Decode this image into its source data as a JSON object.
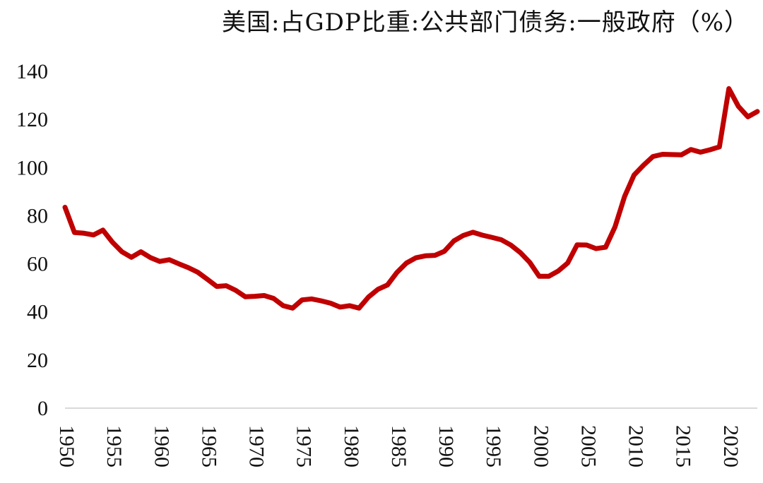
{
  "chart_data": {
    "type": "line",
    "title": "美国:占GDP比重:公共部门债务:一般政府（%）",
    "xlabel": "",
    "ylabel": "",
    "ylim": [
      0,
      140
    ],
    "yticks": [
      0,
      20,
      40,
      60,
      80,
      100,
      120,
      140
    ],
    "xlim": [
      1950,
      2023
    ],
    "xticks": [
      1950,
      1955,
      1960,
      1965,
      1970,
      1975,
      1980,
      1985,
      1990,
      1995,
      2000,
      2005,
      2010,
      2015,
      2020
    ],
    "grid": false,
    "series": [
      {
        "name": "美国:占GDP比重:公共部门债务:一般政府",
        "color": "#C00000",
        "x": [
          1950,
          1951,
          1952,
          1953,
          1954,
          1955,
          1956,
          1957,
          1958,
          1959,
          1960,
          1961,
          1962,
          1963,
          1964,
          1965,
          1966,
          1967,
          1968,
          1969,
          1970,
          1971,
          1972,
          1973,
          1974,
          1975,
          1976,
          1977,
          1978,
          1979,
          1980,
          1981,
          1982,
          1983,
          1984,
          1985,
          1986,
          1987,
          1988,
          1989,
          1990,
          1991,
          1992,
          1993,
          1994,
          1995,
          1996,
          1997,
          1998,
          1999,
          2000,
          2001,
          2002,
          2003,
          2004,
          2005,
          2006,
          2007,
          2008,
          2009,
          2010,
          2011,
          2012,
          2013,
          2014,
          2015,
          2016,
          2017,
          2018,
          2019,
          2020,
          2021,
          2022,
          2023
        ],
        "values": [
          83.5,
          73,
          72.7,
          72,
          74,
          69,
          65,
          62.7,
          65,
          62.6,
          61,
          61.7,
          60,
          58.4,
          56.5,
          53.6,
          50.6,
          50.9,
          49,
          46.3,
          46.5,
          46.8,
          45.6,
          42.6,
          41.6,
          45,
          45.4,
          44.6,
          43.6,
          42,
          42.6,
          41.6,
          46.2,
          49.4,
          51.2,
          56.4,
          60.3,
          62.5,
          63.3,
          63.5,
          65.2,
          69.5,
          71.8,
          73.1,
          71.9,
          71,
          70,
          67.8,
          64.7,
          60.6,
          54.8,
          54.8,
          57,
          60.3,
          67.9,
          67.8,
          66.3,
          66.9,
          75.4,
          88,
          96.9,
          101,
          104.6,
          105.5,
          105.4,
          105.3,
          107.5,
          106.4,
          107.4,
          108.6,
          132.8,
          125.4,
          121.1,
          123.3
        ]
      }
    ]
  }
}
